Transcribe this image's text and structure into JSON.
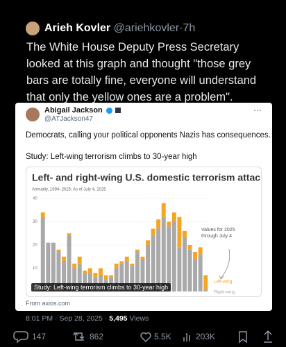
{
  "tweet": {
    "author": "Arieh Kovler",
    "handle": "@ariehkovler",
    "separator": "·",
    "time": "7h",
    "text": "The White House Deputy Press Secretary looked at this graph and thought \"those grey bars are totally fine, everyone will understand that only the yellow ones are a problem\".",
    "quoted": {
      "author": "Abigail Jackson",
      "handle": "@ATJackson47",
      "text": "Democrats, calling your political opponents Nazis has consequences.",
      "headline": "Study: Left-wing terrorism climbs to 30-year high",
      "image_caption": "Study: Left-wing terrorism climbs to 30-year high",
      "source": "From axios.com"
    },
    "timestamp": "8:01 PM · Sep 28, 2025 ·",
    "views": "5,495",
    "views_label": "Views",
    "actions": {
      "replies": "147",
      "reposts": "862",
      "likes": "5.5K",
      "views": "203K"
    }
  },
  "chart_data": {
    "type": "bar",
    "stacked": true,
    "title": "Left- and right-wing U.S. domestic terrorism attacks",
    "subtitle": "Annually, 1994–2025; As of July 4, 2025",
    "annotation": "Values for 2025 through July 4",
    "series": [
      {
        "name": "Right-wing",
        "color": "#a9a9a9",
        "values": [
          32,
          21,
          21,
          17,
          13,
          24,
          10,
          12,
          8,
          8,
          6,
          7,
          5,
          6,
          10,
          12,
          13,
          11,
          17,
          14,
          20,
          24,
          27,
          32,
          28,
          30,
          19,
          23,
          18,
          14,
          16,
          1
        ]
      },
      {
        "name": "Left-wing",
        "color": "#f5a524",
        "values": [
          2,
          0,
          0,
          1,
          2,
          1,
          2,
          3,
          1,
          2,
          2,
          3,
          2,
          1,
          2,
          1,
          2,
          1,
          1,
          1,
          2,
          3,
          4,
          6,
          2,
          4,
          13,
          3,
          2,
          3,
          3,
          6
        ]
      }
    ],
    "ylim": [
      0,
      40
    ],
    "yticks": [
      10,
      20,
      30,
      40
    ],
    "grid": true
  }
}
